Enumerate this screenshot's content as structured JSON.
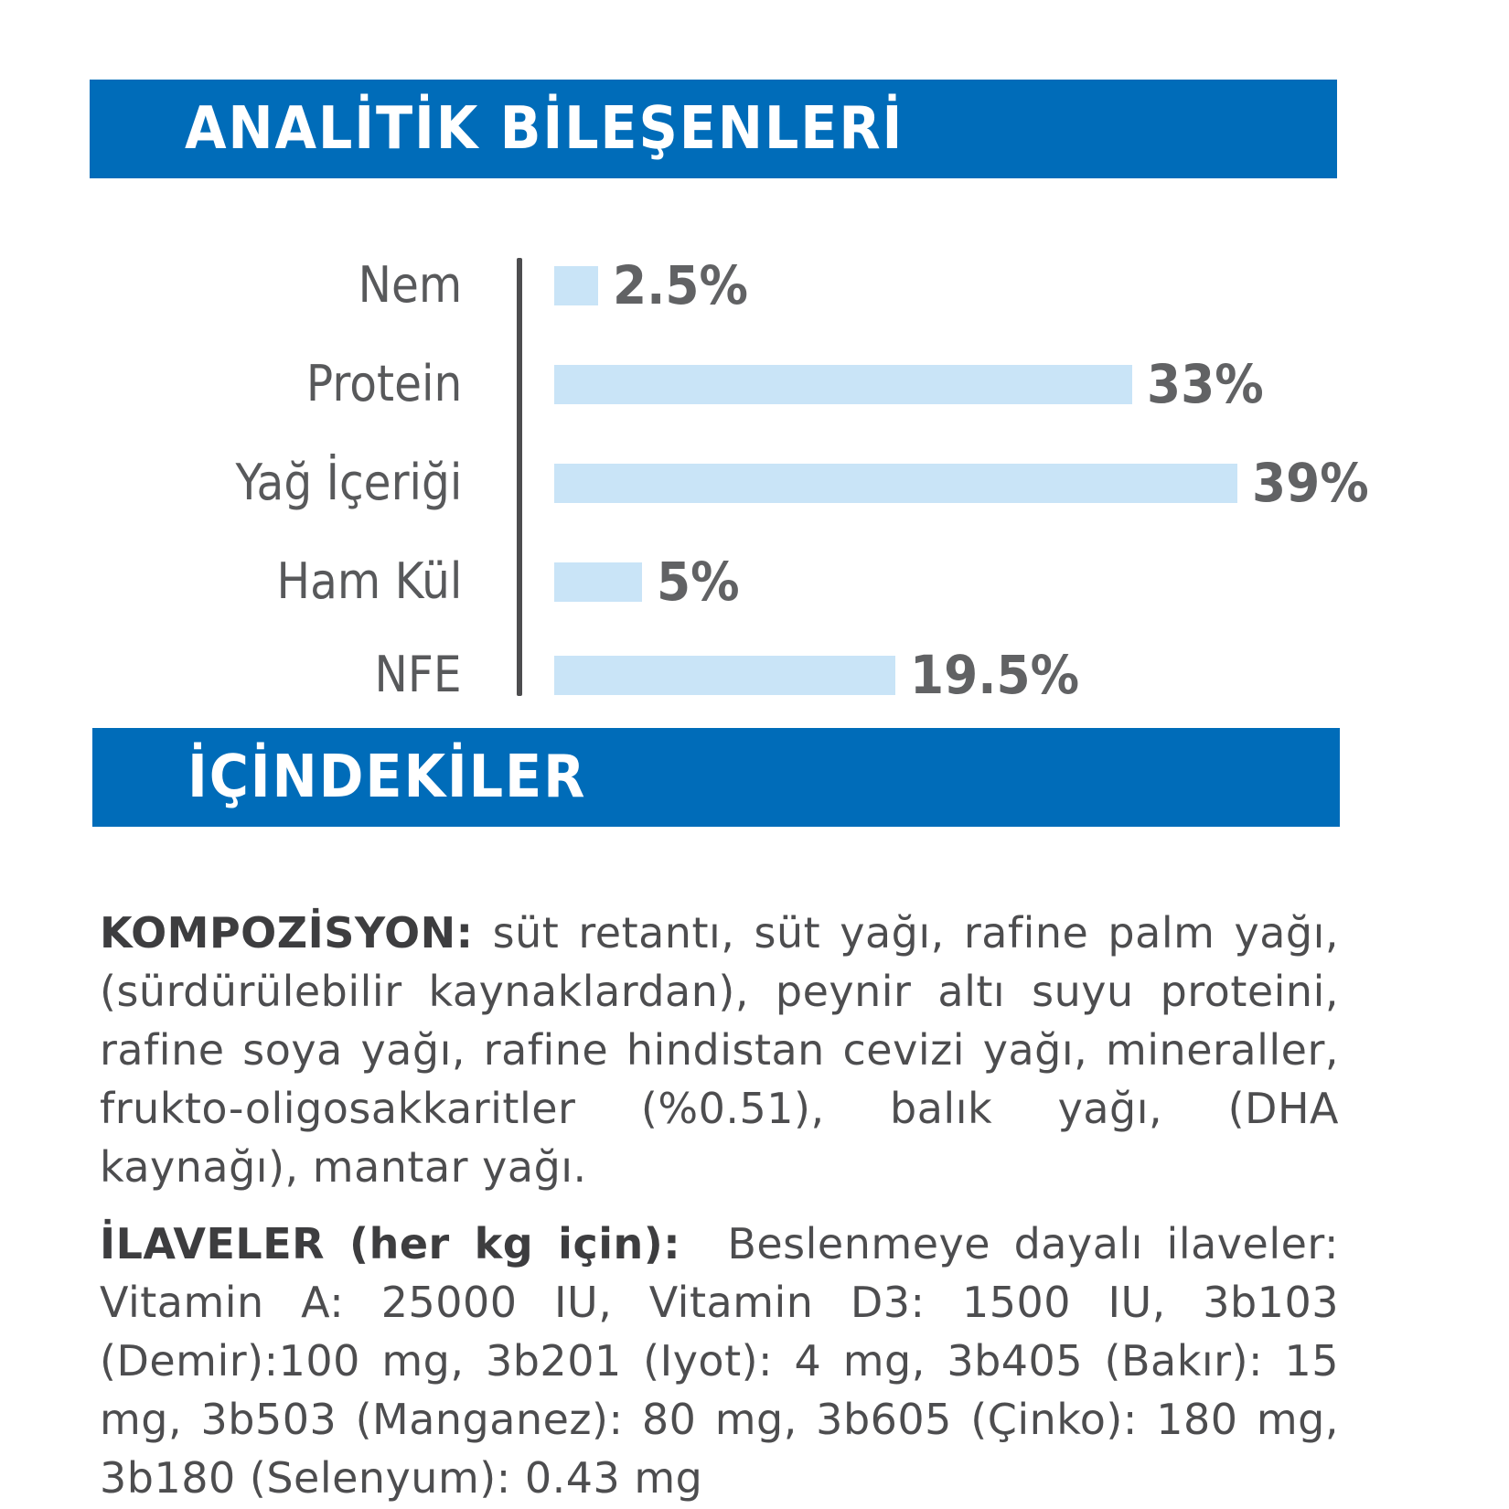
{
  "sections": {
    "analytic": {
      "title": "ANALİTİK BİLEŞENLERİ",
      "color": "#006cb9"
    },
    "ingredients": {
      "title": "İÇİNDEKİLER",
      "color": "#006cb9"
    }
  },
  "chart_data": {
    "type": "bar",
    "orientation": "horizontal",
    "title": "ANALİTİK BİLEŞENLERİ",
    "categories": [
      "Nem",
      "Protein",
      "Yağ İçeriği",
      "Ham Kül",
      "NFE"
    ],
    "values": [
      2.5,
      33,
      39,
      5,
      19.5
    ],
    "value_labels": [
      "2.5%",
      "33%",
      "39%",
      "5%",
      "19.5%"
    ],
    "unit": "%",
    "xlabel": "",
    "ylabel": "",
    "xlim": [
      0,
      40
    ],
    "grid": false,
    "legend": null,
    "bar_color": "#c9e4f7",
    "axis_color": "#4d4d4f"
  },
  "composition": {
    "label": "KOMPOZİSYON:",
    "text": "süt retantı, süt yağı, rafine palm yağı, (sürdürülebilir kaynaklardan), peynir altı suyu proteini, rafine soya yağı, rafine hindistan cevizi yağı, mineraller, frukto-oligosakkaritler (%0.51), balık yağı, (DHA kaynağı), mantar yağı."
  },
  "additives": {
    "label": "İLAVELER (her kg için):",
    "text": "Beslenmeye dayalı ilaveler: Vitamin A: 25000 IU, Vitamin D3: 1500 IU, 3b103 (Demir):100 mg, 3b201 (Iyot): 4 mg, 3b405 (Bakır): 15 mg, 3b503 (Manganez): 80 mg, 3b605 (Çinko): 180 mg, 3b180 (Selenyum): 0.43 mg"
  }
}
